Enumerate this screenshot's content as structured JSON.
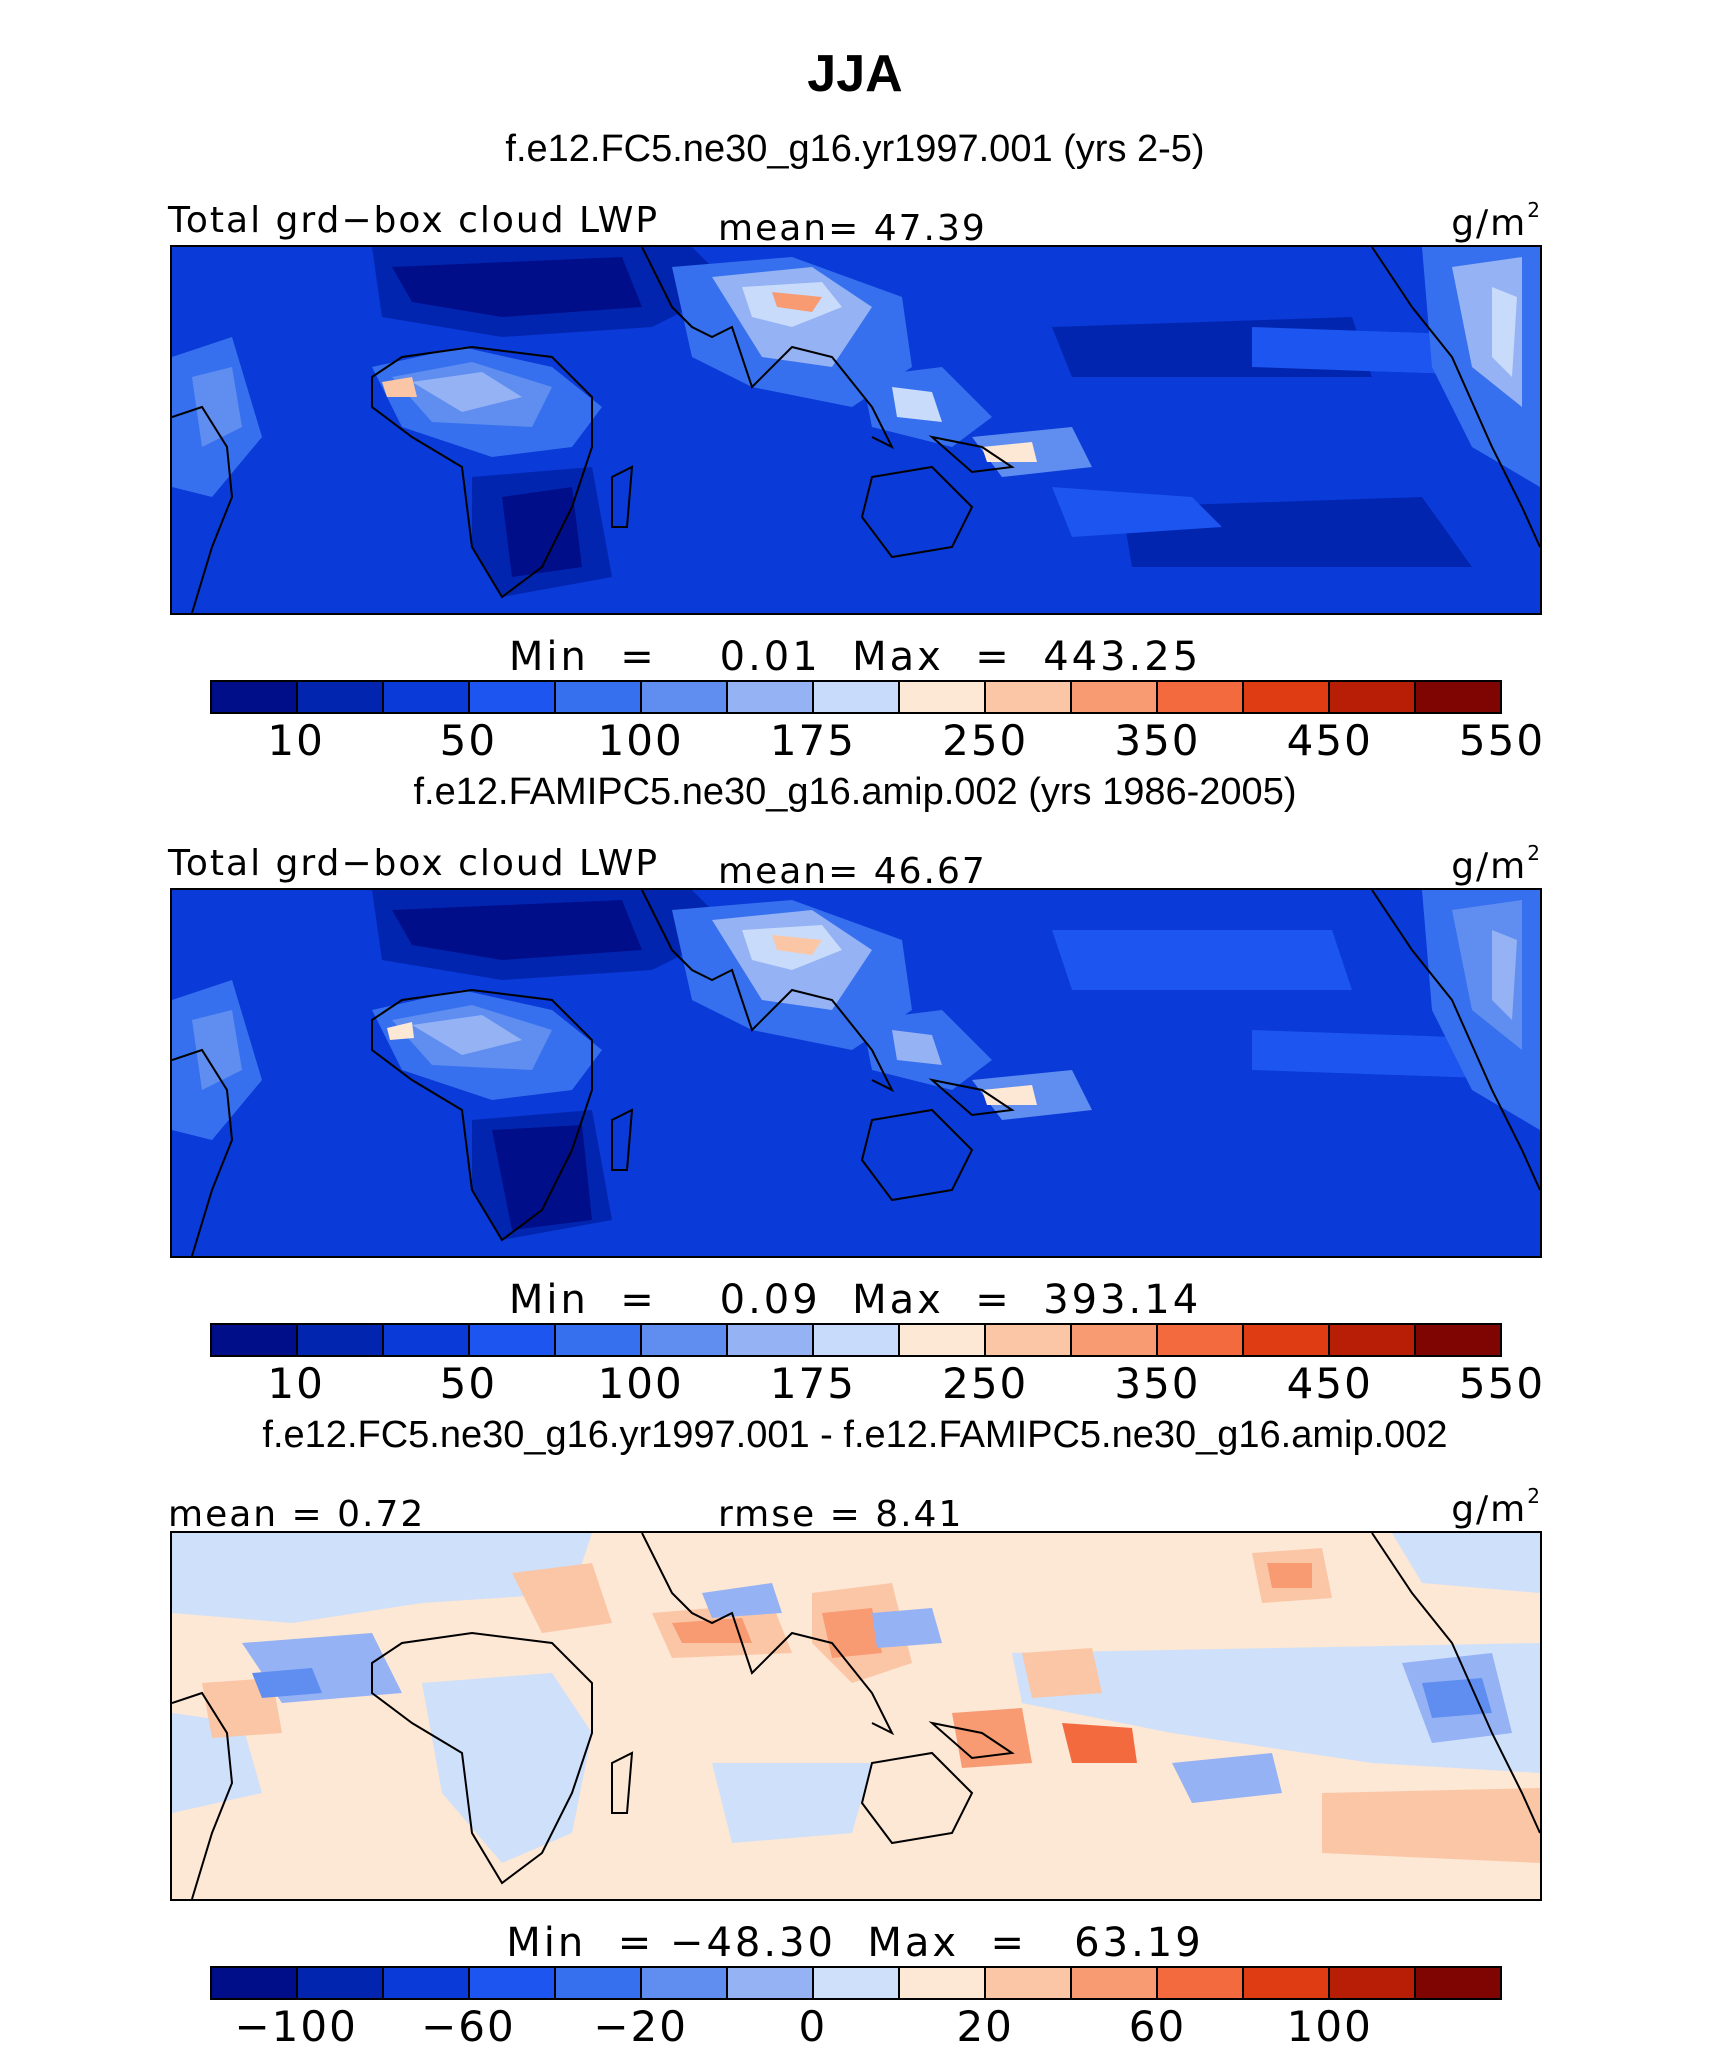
{
  "title": "JJA",
  "panels": [
    {
      "case": "f.e12.FC5.ne30_g16.yr1997.001 (yrs 2-5)",
      "left_label": "Total grd−box cloud LWP",
      "center_label": "mean=  47.39",
      "unit": "g/m",
      "unit_exp": "2",
      "minmax": "Min  =    0.01  Max  =  443.25",
      "colorbar_ticks": [
        "10",
        "50",
        "100",
        "175",
        "250",
        "350",
        "450",
        "550"
      ]
    },
    {
      "case": "f.e12.FAMIPC5.ne30_g16.amip.002 (yrs 1986-2005)",
      "left_label": "Total grd−box cloud LWP",
      "center_label": "mean=  46.67",
      "unit": "g/m",
      "unit_exp": "2",
      "minmax": "Min  =    0.09  Max  =  393.14",
      "colorbar_ticks": [
        "10",
        "50",
        "100",
        "175",
        "250",
        "350",
        "450",
        "550"
      ]
    },
    {
      "case": "f.e12.FC5.ne30_g16.yr1997.001 - f.e12.FAMIPC5.ne30_g16.amip.002",
      "left_label": "mean =   0.72",
      "center_label": "rmse =   8.41",
      "unit": "g/m",
      "unit_exp": "2",
      "minmax": "Min  = −48.30  Max  =   63.19",
      "colorbar_ticks": [
        "−100",
        "−60",
        "−20",
        "0",
        "20",
        "60",
        "100"
      ]
    }
  ],
  "colors": {
    "abs_scale": [
      "#000e8a",
      "#0225b0",
      "#0a3ad8",
      "#1c55f0",
      "#3670ee",
      "#5f8ef0",
      "#94b2f4",
      "#c9dbfa",
      "#fde7d5",
      "#fbc6a6",
      "#f89a72",
      "#f26a3e",
      "#e03c13",
      "#b81e06",
      "#7e0502"
    ],
    "diff_scale": [
      "#000e8a",
      "#0225b0",
      "#0a3ad8",
      "#1c55f0",
      "#3670ee",
      "#5f8ef0",
      "#94b2f4",
      "#cfe0fa",
      "#fde7d5",
      "#fbc6a6",
      "#f89a72",
      "#f26a3e",
      "#e03c13",
      "#b81e06",
      "#7e0502"
    ],
    "coast": "#000000"
  }
}
